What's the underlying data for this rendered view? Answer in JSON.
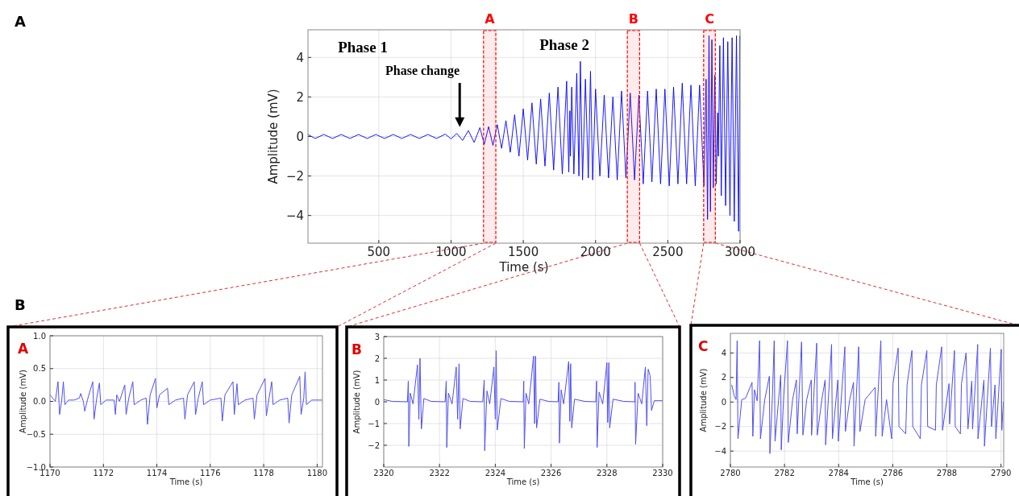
{
  "chart_data": [
    {
      "type": "line",
      "xlabel": "Time (s)",
      "ylabel": "Amplitude (mV)",
      "xlim": [
        10,
        3000
      ],
      "ylim": [
        -5.4,
        5.4
      ],
      "xticks": [
        500,
        1000,
        1500,
        2000,
        2500,
        3000
      ],
      "yticks": [
        {
          "value": -4,
          "label": "−4"
        },
        {
          "value": -2,
          "label": "−2"
        },
        0,
        2,
        4
      ],
      "grid": true,
      "annotations": [
        "A",
        "Phase 1",
        "Phase 2",
        "Phase change"
      ],
      "bands": [
        {
          "axis": "x",
          "from": 1225,
          "to": 1310,
          "label": "A",
          "color": "#ff0000"
        },
        {
          "axis": "x",
          "from": 2220,
          "to": 2305,
          "label": "B",
          "color": "#ff0000"
        },
        {
          "axis": "x",
          "from": 2748,
          "to": 2829,
          "label": "C",
          "color": "#ff0000"
        }
      ],
      "series": [
        {
          "color": "#0000ff",
          "x": [
            10,
            60,
            120,
            180,
            240,
            300,
            360,
            420,
            480,
            540,
            600,
            660,
            720,
            780,
            840,
            900,
            960,
            1000,
            1040,
            1080,
            1120,
            1160,
            1200,
            1230,
            1260,
            1290,
            1320,
            1350,
            1380,
            1410,
            1440,
            1470,
            1500,
            1530,
            1560,
            1590,
            1620,
            1650,
            1680,
            1710,
            1740,
            1770,
            1800,
            1815,
            1822,
            1826,
            1835,
            1850,
            1870,
            1885,
            1895,
            1910,
            1930,
            1950,
            1965,
            1980,
            2000,
            2030,
            2060,
            2090,
            2120,
            2150,
            2180,
            2210,
            2240,
            2270,
            2300,
            2330,
            2360,
            2390,
            2420,
            2450,
            2480,
            2510,
            2540,
            2570,
            2600,
            2630,
            2660,
            2690,
            2720,
            2750,
            2765,
            2775,
            2785,
            2795,
            2805,
            2815,
            2825,
            2835,
            2845,
            2850,
            2860,
            2870,
            2885,
            2900,
            2915,
            2930,
            2945,
            2960,
            2975,
            2990,
            2998
          ],
          "values": [
            0.1,
            -0.1,
            0.1,
            -0.1,
            0.1,
            -0.1,
            0.1,
            -0.1,
            0.1,
            -0.1,
            0.1,
            -0.1,
            0.1,
            -0.1,
            0.1,
            -0.1,
            0.12,
            -0.12,
            0.15,
            -0.2,
            0.3,
            -0.3,
            0.45,
            -0.4,
            0.5,
            -0.45,
            0.6,
            -0.6,
            0.8,
            -0.8,
            1.1,
            -1.0,
            1.4,
            -1.2,
            1.7,
            -1.4,
            1.9,
            -1.5,
            2.2,
            -1.7,
            2.5,
            -1.9,
            2.8,
            -1.8,
            1.3,
            -1.0,
            2.5,
            -1.9,
            3.2,
            -2.0,
            3.8,
            -2.2,
            2.9,
            -2.1,
            3.3,
            -2.2,
            2.4,
            -2.0,
            2.1,
            -2.1,
            2.0,
            -2.2,
            2.3,
            -2.1,
            2.2,
            -2.2,
            2.1,
            -2.4,
            2.3,
            -2.3,
            2.4,
            -2.4,
            2.4,
            -2.5,
            2.5,
            -2.4,
            2.7,
            -2.4,
            2.6,
            -2.5,
            2.6,
            -2.5,
            2.9,
            -4.2,
            5.1,
            -3.8,
            4.9,
            -2.6,
            3.1,
            -2.4,
            1.2,
            -1.0,
            4.6,
            -3.0,
            5.0,
            -3.5,
            4.8,
            -4.0,
            5.0,
            -4.3,
            5.1,
            -4.8,
            5.1
          ]
        }
      ]
    },
    {
      "type": "line",
      "title": "A",
      "xlabel": "Time (s)",
      "ylabel": "Amplitude (mV)",
      "xlim": [
        1170,
        1180.2
      ],
      "ylim": [
        -1,
        1
      ],
      "xticks": [
        1170,
        1172,
        1174,
        1176,
        1178,
        1180
      ],
      "yticks": [
        {
          "value": -1,
          "label": "−1.0"
        },
        {
          "value": -0.5,
          "label": "−0.5"
        },
        {
          "value": 0,
          "label": "0.0"
        },
        {
          "value": 0.5,
          "label": "0.5"
        },
        {
          "value": 1,
          "label": "1.0"
        }
      ],
      "grid": true,
      "annotations": [
        "B"
      ],
      "series": [
        {
          "color": "#5050f0",
          "x": [
            1170,
            1170.1,
            1170.2,
            1170.3,
            1170.36,
            1170.44,
            1170.5,
            1170.56,
            1170.7,
            1170.9,
            1171.1,
            1171.15,
            1171.25,
            1171.3,
            1171.4,
            1171.6,
            1171.65,
            1171.75,
            1171.85,
            1171.9,
            1172.1,
            1172.4,
            1172.45,
            1172.5,
            1172.6,
            1172.8,
            1172.85,
            1172.95,
            1173.1,
            1173.15,
            1173.4,
            1173.6,
            1173.65,
            1173.75,
            1173.95,
            1174.0,
            1174.1,
            1174.4,
            1174.45,
            1174.7,
            1175.0,
            1175.05,
            1175.15,
            1175.4,
            1175.45,
            1175.55,
            1175.7,
            1175.75,
            1176.0,
            1176.4,
            1176.45,
            1176.55,
            1176.85,
            1176.9,
            1177.0,
            1177.05,
            1177.3,
            1177.6,
            1177.65,
            1177.75,
            1178.05,
            1178.1,
            1178.2,
            1178.3,
            1178.35,
            1178.6,
            1178.9,
            1178.95,
            1179.05,
            1179.35,
            1179.4,
            1179.5,
            1179.55,
            1179.6,
            1179.8,
            1180.2
          ],
          "values": [
            0.1,
            0.05,
            0.0,
            0.3,
            -0.2,
            0.02,
            0.3,
            -0.05,
            0.02,
            0.02,
            0.05,
            0.12,
            0.0,
            -0.15,
            0.02,
            0.3,
            -0.27,
            0.05,
            0.28,
            -0.05,
            0.02,
            0.02,
            -0.2,
            0.1,
            0.0,
            0.25,
            -0.2,
            0.05,
            0.3,
            -0.05,
            0.02,
            0.05,
            -0.35,
            0.1,
            0.35,
            -0.1,
            0.1,
            0.2,
            -0.05,
            0.02,
            0.05,
            -0.27,
            0.1,
            0.3,
            -0.2,
            0.05,
            0.3,
            -0.05,
            0.02,
            0.05,
            -0.3,
            0.1,
            0.3,
            -0.2,
            0.27,
            -0.05,
            0.02,
            0.05,
            -0.27,
            0.1,
            0.35,
            -0.22,
            0.05,
            0.3,
            -0.05,
            0.02,
            0.05,
            -0.33,
            0.1,
            0.38,
            -0.2,
            0.05,
            0.45,
            -0.05,
            0.02,
            0.02
          ]
        }
      ]
    },
    {
      "type": "line",
      "title": "B",
      "xlabel": "Time (s)",
      "ylabel": "Amplitude (mV)",
      "xlim": [
        2320,
        2330
      ],
      "ylim": [
        -3,
        3
      ],
      "xticks": [
        2320,
        2322,
        2324,
        2326,
        2328,
        2330
      ],
      "yticks": [
        {
          "value": -2,
          "label": "−2"
        },
        {
          "value": -1,
          "label": "−1"
        },
        0,
        1,
        2,
        3
      ],
      "grid": true,
      "series": [
        {
          "color": "#5050f0",
          "x": [
            2320,
            2320.3,
            2320.85,
            2320.88,
            2320.9,
            2320.95,
            2321.05,
            2321.21,
            2321.26,
            2321.3,
            2321.35,
            2321.44,
            2321.7,
            2322.2,
            2322.24,
            2322.26,
            2322.32,
            2322.45,
            2322.6,
            2322.65,
            2322.7,
            2322.74,
            2322.84,
            2323.1,
            2323.55,
            2323.6,
            2323.62,
            2323.7,
            2323.8,
            2323.95,
            2324.0,
            2324.03,
            2324.07,
            2324.2,
            2324.5,
            2325.0,
            2325.02,
            2325.04,
            2325.1,
            2325.2,
            2325.37,
            2325.41,
            2325.44,
            2325.48,
            2325.6,
            2325.9,
            2326.25,
            2326.28,
            2326.3,
            2326.36,
            2326.45,
            2326.63,
            2326.67,
            2326.7,
            2326.74,
            2326.84,
            2327.2,
            2327.6,
            2327.63,
            2327.65,
            2327.72,
            2327.85,
            2328.0,
            2328.03,
            2328.07,
            2328.1,
            2328.22,
            2328.6,
            2329.0,
            2329.01,
            2329.03,
            2329.12,
            2329.25,
            2329.38,
            2329.43,
            2329.48,
            2329.55,
            2329.6,
            2329.7,
            2330
          ],
          "values": [
            0.1,
            0.02,
            0.0,
            0.95,
            -2.05,
            0.4,
            -0.1,
            1.7,
            -0.8,
            2.0,
            -1.25,
            0.15,
            0.02,
            0.0,
            0.95,
            -2.1,
            0.4,
            -0.1,
            1.6,
            -0.8,
            1.75,
            -1.25,
            0.15,
            0.02,
            0.0,
            1.0,
            -2.25,
            0.5,
            -0.1,
            1.6,
            -0.8,
            2.35,
            -1.3,
            0.15,
            0.02,
            0.0,
            0.95,
            -2.15,
            0.4,
            -0.1,
            2.1,
            -1.0,
            2.1,
            -1.2,
            0.12,
            0.02,
            0.0,
            0.9,
            -1.9,
            0.55,
            -0.1,
            1.85,
            -0.9,
            1.75,
            -1.2,
            0.12,
            0.02,
            0.0,
            0.95,
            -2.1,
            0.45,
            -0.1,
            1.8,
            -0.95,
            1.8,
            -1.2,
            0.12,
            0.02,
            0.0,
            0.9,
            -1.95,
            0.4,
            -0.1,
            1.6,
            -1.1,
            1.5,
            1.2,
            -0.4,
            0.05,
            0.05
          ]
        }
      ]
    },
    {
      "type": "line",
      "title": "C",
      "xlabel": "Time (s)",
      "ylabel": "Amplitude (mV)",
      "xlim": [
        2780,
        2790.1
      ],
      "ylim": [
        -5.3,
        5.6
      ],
      "xticks": [
        2780,
        2782,
        2784,
        2786,
        2788,
        2790
      ],
      "yticks": [
        {
          "value": -4,
          "label": "−4"
        },
        {
          "value": -2,
          "label": "−2"
        },
        0,
        2,
        4
      ],
      "grid": true,
      "series": [
        {
          "color": "#5050f0",
          "x": [
            2780.05,
            2780.14,
            2780.21,
            2780.25,
            2780.28,
            2780.42,
            2780.56,
            2780.8,
            2780.83,
            2780.89,
            2780.99,
            2781.08,
            2781.11,
            2781.27,
            2781.44,
            2781.46,
            2781.55,
            2781.62,
            2781.65,
            2781.86,
            2781.88,
            2781.97,
            2782.11,
            2782.14,
            2782.3,
            2782.44,
            2782.47,
            2782.63,
            2782.68,
            2782.82,
            2782.99,
            2783.0,
            2783.19,
            2783.21,
            2783.38,
            2783.5,
            2783.52,
            2783.74,
            2783.77,
            2783.97,
            2783.99,
            2784.23,
            2784.25,
            2784.41,
            2784.55,
            2784.57,
            2784.74,
            2784.79,
            2784.98,
            2785.35,
            2785.37,
            2785.56,
            2785.61,
            2785.77,
            2785.96,
            2786.01,
            2786.2,
            2786.23,
            2786.48,
            2786.53,
            2786.71,
            2786.74,
            2787.02,
            2787.06,
            2787.26,
            2787.29,
            2787.58,
            2787.61,
            2787.81,
            2787.84,
            2788.08,
            2788.1,
            2788.28,
            2788.31,
            2788.5,
            2788.54,
            2788.71,
            2788.78,
            2788.92,
            2788.95,
            2789.14,
            2789.15,
            2789.37,
            2789.39,
            2789.61,
            2789.65,
            2789.78,
            2789.81,
            2790.01,
            2790.03,
            2790.09
          ],
          "values": [
            1.4,
            0.5,
            0.2,
            5.0,
            -3.0,
            0.2,
            0.3,
            1.6,
            -2.8,
            1.0,
            0.1,
            5.0,
            -3.0,
            0.2,
            2.1,
            -4.2,
            0.3,
            5.0,
            -3.2,
            2.2,
            -3.9,
            0.5,
            5.0,
            -3.3,
            0.2,
            1.8,
            -2.6,
            4.9,
            -2.7,
            0.2,
            1.8,
            -2.7,
            4.8,
            -2.7,
            0.2,
            1.8,
            -3.5,
            4.7,
            -3.0,
            1.8,
            -3.2,
            4.5,
            -2.4,
            0.2,
            1.6,
            -3.6,
            4.5,
            -2.4,
            0.2,
            1.2,
            -2.8,
            5.0,
            -2.8,
            0.2,
            -3.0,
            1.5,
            4.4,
            -2.0,
            -2.6,
            1.4,
            4.2,
            -2.0,
            -3.0,
            1.4,
            4.2,
            -2.0,
            -2.3,
            1.4,
            4.5,
            -2.3,
            1.5,
            -1.8,
            4.2,
            -2.0,
            -2.6,
            1.5,
            4.0,
            -2.2,
            1.7,
            -2.2,
            4.7,
            -3.0,
            1.8,
            -3.6,
            4.4,
            -2.0,
            1.4,
            -3.0,
            4.3,
            -2.3,
            0.0
          ]
        }
      ]
    }
  ]
}
